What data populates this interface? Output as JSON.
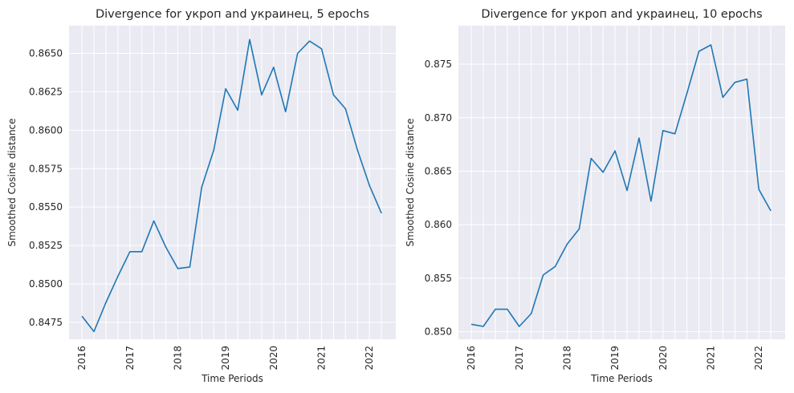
{
  "chart_data": [
    {
      "type": "line",
      "title": "Divergence for укроп and украинец, 5 epochs",
      "xlabel": "Time Periods",
      "ylabel": "Smoothed Cosine distance",
      "x_tick_labels": [
        "2016",
        "2017",
        "2018",
        "2019",
        "2020",
        "2021",
        "2022"
      ],
      "x_tick_values": [
        2016,
        2017,
        2018,
        2019,
        2020,
        2021,
        2022
      ],
      "xlim": [
        2015.73,
        2022.55
      ],
      "y_ticks": [
        "0.8475",
        "0.8500",
        "0.8525",
        "0.8550",
        "0.8575",
        "0.8600",
        "0.8625",
        "0.8650"
      ],
      "y_tick_values": [
        0.8475,
        0.85,
        0.8525,
        0.855,
        0.8575,
        0.86,
        0.8625,
        0.865
      ],
      "ylim": [
        0.8464,
        0.8668
      ],
      "grid": true,
      "color": "#1f77b4",
      "x": [
        2016.0,
        2016.25,
        2016.5,
        2016.75,
        2017.0,
        2017.25,
        2017.5,
        2017.75,
        2018.0,
        2018.25,
        2018.5,
        2018.75,
        2019.0,
        2019.25,
        2019.5,
        2019.75,
        2020.0,
        2020.25,
        2020.5,
        2020.75,
        2021.0,
        2021.25,
        2021.5,
        2021.75,
        2022.0,
        2022.25
      ],
      "y": [
        0.8479,
        0.8469,
        0.8488,
        0.8505,
        0.8521,
        0.8521,
        0.8541,
        0.8524,
        0.851,
        0.8511,
        0.8563,
        0.8587,
        0.8627,
        0.8613,
        0.8659,
        0.8623,
        0.8641,
        0.8612,
        0.865,
        0.8658,
        0.8653,
        0.8623,
        0.8614,
        0.8587,
        0.8564,
        0.8546
      ]
    },
    {
      "type": "line",
      "title": "Divergence for укроп and украинец, 10 epochs",
      "xlabel": "Time Periods",
      "ylabel": "Smoothed Cosine distance",
      "x_tick_labels": [
        "2016",
        "2017",
        "2018",
        "2019",
        "2020",
        "2021",
        "2022"
      ],
      "x_tick_values": [
        2016,
        2017,
        2018,
        2019,
        2020,
        2021,
        2022
      ],
      "xlim": [
        2015.73,
        2022.55
      ],
      "y_ticks": [
        "0.850",
        "0.855",
        "0.860",
        "0.865",
        "0.870",
        "0.875"
      ],
      "y_tick_values": [
        0.85,
        0.855,
        0.86,
        0.865,
        0.87,
        0.875
      ],
      "ylim": [
        0.8493,
        0.8786
      ],
      "grid": true,
      "color": "#1f77b4",
      "x": [
        2016.0,
        2016.25,
        2016.5,
        2016.75,
        2017.0,
        2017.25,
        2017.5,
        2017.75,
        2018.0,
        2018.25,
        2018.5,
        2018.75,
        2019.0,
        2019.25,
        2019.5,
        2019.75,
        2020.0,
        2020.25,
        2020.5,
        2020.75,
        2021.0,
        2021.25,
        2021.5,
        2021.75,
        2022.0,
        2022.25
      ],
      "y": [
        0.8507,
        0.8505,
        0.8521,
        0.8521,
        0.8505,
        0.8517,
        0.8553,
        0.8561,
        0.8582,
        0.8596,
        0.8662,
        0.8649,
        0.8669,
        0.8632,
        0.8681,
        0.8622,
        0.8688,
        0.8685,
        0.8723,
        0.8762,
        0.8768,
        0.8719,
        0.8733,
        0.8736,
        0.8633,
        0.8613
      ]
    }
  ]
}
